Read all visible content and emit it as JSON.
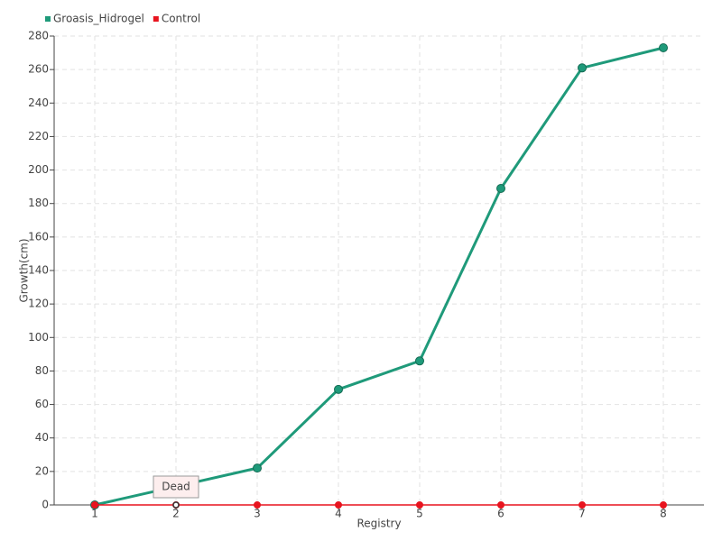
{
  "chart_data": {
    "type": "line",
    "x_label": "Registry",
    "y_label": "Growth(cm)",
    "x": [
      1,
      2,
      3,
      4,
      5,
      6,
      7,
      8
    ],
    "series": [
      {
        "name": "Groasis_Hidrogel",
        "color": "#1f9a7a",
        "values": [
          0,
          11,
          22,
          69,
          86,
          189,
          261,
          273
        ]
      },
      {
        "name": "Control",
        "color": "#e8141f",
        "values": [
          0,
          0,
          0,
          0,
          0,
          0,
          0,
          0
        ]
      }
    ],
    "xlim": [
      0.5,
      8.5
    ],
    "xticks": [
      1,
      2,
      3,
      4,
      5,
      6,
      7,
      8
    ],
    "ylim": [
      0,
      280
    ],
    "yticks": [
      0,
      20,
      40,
      60,
      80,
      100,
      120,
      140,
      160,
      180,
      200,
      220,
      240,
      260,
      280
    ],
    "grid": true,
    "legend": "top-left",
    "annotations": [
      {
        "text": "Dead",
        "x": 2
      }
    ]
  }
}
